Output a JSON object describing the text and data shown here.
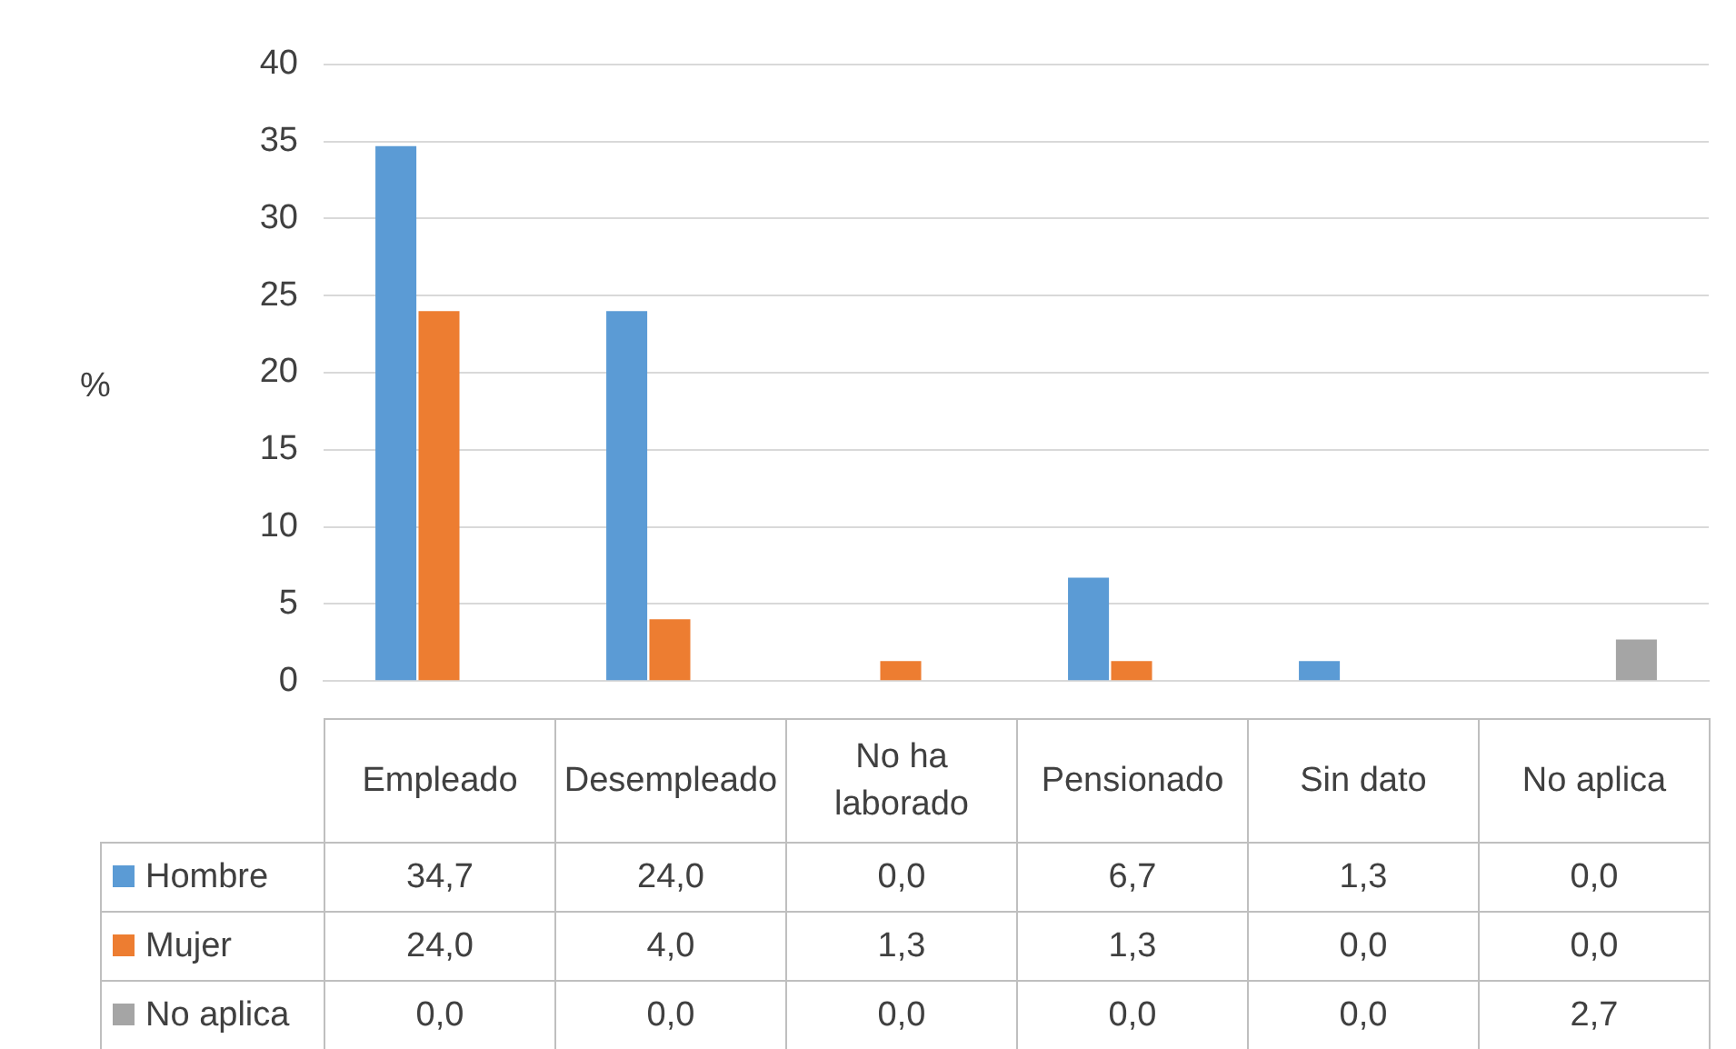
{
  "chart_data": {
    "type": "bar",
    "ylabel": "%",
    "categories": [
      "Empleado",
      "Desempleado",
      "No ha laborado",
      "Pensionado",
      "Sin dato",
      "No aplica"
    ],
    "series": [
      {
        "name": "Hombre",
        "color": "#5b9bd5",
        "values": [
          34.7,
          24.0,
          0.0,
          6.7,
          1.3,
          0.0
        ],
        "value_labels": [
          "34,7",
          "24,0",
          "0,0",
          "6,7",
          "1,3",
          "0,0"
        ]
      },
      {
        "name": "Mujer",
        "color": "#ed7d31",
        "values": [
          24.0,
          4.0,
          1.3,
          1.3,
          0.0,
          0.0
        ],
        "value_labels": [
          "24,0",
          "4,0",
          "1,3",
          "1,3",
          "0,0",
          "0,0"
        ]
      },
      {
        "name": "No aplica",
        "color": "#a5a5a5",
        "values": [
          0.0,
          0.0,
          0.0,
          0.0,
          0.0,
          2.7
        ],
        "value_labels": [
          "0,0",
          "0,0",
          "0,0",
          "0,0",
          "0,0",
          "2,7"
        ]
      }
    ],
    "ylim": [
      0,
      40
    ],
    "yticks": [
      0,
      5,
      10,
      15,
      20,
      25,
      30,
      35,
      40
    ],
    "grid": "y",
    "legend": "bottom left"
  }
}
